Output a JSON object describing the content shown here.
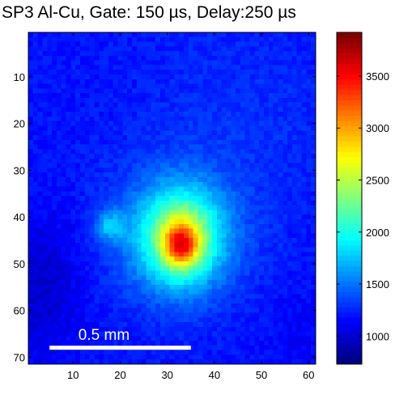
{
  "chart_data": {
    "type": "heatmap",
    "title": "SP3 Al-Cu, Gate: 150 µs, Delay:250 µs",
    "xlabel": "",
    "ylabel": "",
    "x_range": [
      0.5,
      61.5
    ],
    "y_range": [
      0.5,
      71.5
    ],
    "y_reversed": true,
    "x_ticks": [
      10,
      20,
      30,
      40,
      50,
      60
    ],
    "y_ticks": [
      10,
      20,
      30,
      40,
      50,
      60,
      70
    ],
    "grid": false,
    "colormap": "jet",
    "colorbar": {
      "range": [
        730,
        3920
      ],
      "ticks": [
        1000,
        1500,
        2000,
        2500,
        3000,
        3500
      ]
    },
    "background_level": 1180,
    "peak": {
      "x": 33,
      "y": 46,
      "value": 3900
    },
    "secondary_blob": {
      "x": 18,
      "y": 42,
      "value": 1650
    },
    "scale_bar": {
      "label": "0.5 mm",
      "x_start": 5,
      "x_end": 35,
      "y": 68
    }
  }
}
